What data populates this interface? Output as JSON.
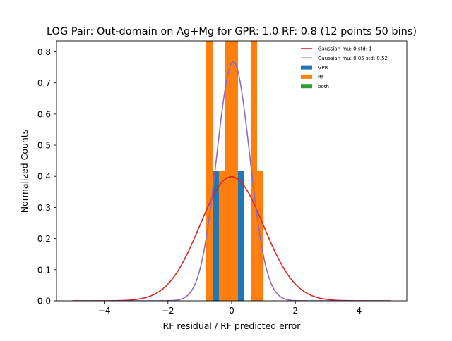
{
  "chart_data": {
    "type": "bar",
    "title": "LOG Pair: Out-domain on Ag+Mg for GPR: 1.0 RF: 0.8 (12 points 50 bins)",
    "xlabel": "RF residual / RF predicted error",
    "ylabel": "Normalized Counts",
    "xlim": [
      -5.5,
      5.5
    ],
    "ylim": [
      0,
      0.835
    ],
    "xticks": [
      -4,
      -2,
      0,
      2,
      4
    ],
    "xtick_labels": [
      "−4",
      "−2",
      "0",
      "2",
      "4"
    ],
    "yticks": [
      0.0,
      0.1,
      0.2,
      0.3,
      0.4,
      0.5,
      0.6,
      0.7,
      0.8
    ],
    "ytick_labels": [
      "0.0",
      "0.1",
      "0.2",
      "0.3",
      "0.4",
      "0.5",
      "0.6",
      "0.7",
      "0.8"
    ],
    "grid": false,
    "legend_position": "top-right",
    "series": [
      {
        "name": "GPR",
        "kind": "histogram",
        "color": "#1f77b4",
        "bins": [
          {
            "x0": -0.6,
            "x1": -0.4,
            "value": 0.417
          },
          {
            "x0": -0.2,
            "x1": 0.0,
            "value": 0.417
          },
          {
            "x0": 0.2,
            "x1": 0.4,
            "value": 0.417
          }
        ]
      },
      {
        "name": "RF",
        "kind": "histogram",
        "color": "#ff7f0e",
        "bins": [
          {
            "x0": -0.8,
            "x1": -0.6,
            "value": 0.835
          },
          {
            "x0": -0.4,
            "x1": -0.2,
            "value": 0.417
          },
          {
            "x0": -0.2,
            "x1": 0.2,
            "value": 0.835
          },
          {
            "x0": 0.6,
            "x1": 0.8,
            "value": 0.835
          },
          {
            "x0": 0.8,
            "x1": 1.0,
            "value": 0.417
          }
        ]
      },
      {
        "name": "both",
        "kind": "histogram",
        "color": "#2ca02c",
        "bins": []
      },
      {
        "name": "Gaussian mu: 0 std: 1",
        "kind": "gaussian",
        "color": "#d62728",
        "mu": 0,
        "std": 1,
        "x_range": [
          -5,
          5
        ]
      },
      {
        "name": "Gaussian mu: 0.05 std: 0.52",
        "kind": "gaussian",
        "color": "#9467bd",
        "mu": 0.05,
        "std": 0.52,
        "x_range": [
          -5,
          5
        ]
      }
    ],
    "legend_order": [
      "Gaussian mu: 0 std: 1",
      "Gaussian mu: 0.05 std: 0.52",
      "GPR",
      "RF",
      "both"
    ]
  }
}
